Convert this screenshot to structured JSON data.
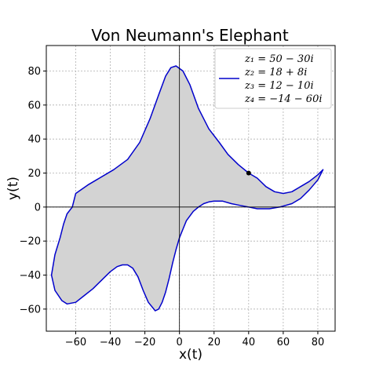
{
  "chart_data": {
    "type": "line",
    "title": "Von Neumann's Elephant",
    "xlabel": "x(t)",
    "ylabel": "y(t)",
    "xlim": [
      -77,
      90
    ],
    "ylim": [
      -73,
      95
    ],
    "xticks": [
      -60,
      -40,
      -20,
      0,
      20,
      40,
      60,
      80
    ],
    "yticks": [
      -60,
      -40,
      -20,
      0,
      20,
      40,
      60,
      80
    ],
    "xtick_labels": [
      "−60",
      "−40",
      "−20",
      "0",
      "20",
      "40",
      "60",
      "80"
    ],
    "ytick_labels": [
      "−60",
      "−40",
      "−20",
      "0",
      "20",
      "40",
      "60",
      "80"
    ],
    "grid": true,
    "legend_position": "top-right",
    "legend_entries": [
      "z₁ = 50 − 30i",
      "z₂ = 18 + 8i",
      "z₃ = 12 − 10i",
      "z₄ = −14 − 60i"
    ],
    "series": [
      {
        "color": "#0000cc",
        "fill": "#d3d3d3",
        "x": [
          -60,
          -53,
          -48,
          -38,
          -30,
          -23,
          -17,
          -12,
          -8,
          -5,
          -2,
          2,
          6,
          11,
          17,
          23,
          28,
          34,
          40,
          45,
          50,
          55,
          60,
          65,
          70,
          75,
          80,
          83,
          82,
          80,
          75,
          70,
          65,
          58,
          52,
          45,
          40,
          35,
          30,
          25,
          20,
          17,
          14,
          11,
          8,
          4,
          2,
          0,
          -2,
          -4,
          -6,
          -8,
          -10,
          -12,
          -14,
          -18,
          -21,
          -24,
          -27,
          -30,
          -33,
          -36,
          -40,
          -44,
          -50,
          -55,
          -60,
          -65,
          -68,
          -72,
          -74,
          -72,
          -69,
          -67,
          -65,
          -62,
          -60
        ],
        "y": [
          8,
          13,
          16,
          22,
          28,
          38,
          52,
          66,
          77,
          82,
          83,
          80,
          72,
          58,
          46,
          38,
          31,
          25,
          20,
          17,
          12,
          9,
          8,
          9,
          12,
          15,
          19,
          22,
          20,
          16,
          10,
          5,
          2,
          0,
          -1,
          -1,
          0,
          1,
          2,
          3.5,
          3.5,
          3,
          2,
          0,
          -2.5,
          -8,
          -13,
          -18,
          -25,
          -33,
          -42,
          -50,
          -56,
          -60,
          -61,
          -56,
          -49,
          -41,
          -36,
          -34,
          -34,
          -35,
          -38,
          -42,
          -48,
          -52,
          -56,
          -57,
          -55,
          -49,
          -40,
          -28,
          -18,
          -10,
          -4,
          0,
          8
        ]
      }
    ],
    "markers": [
      {
        "x": 40,
        "y": 20,
        "color": "#000000"
      }
    ]
  }
}
